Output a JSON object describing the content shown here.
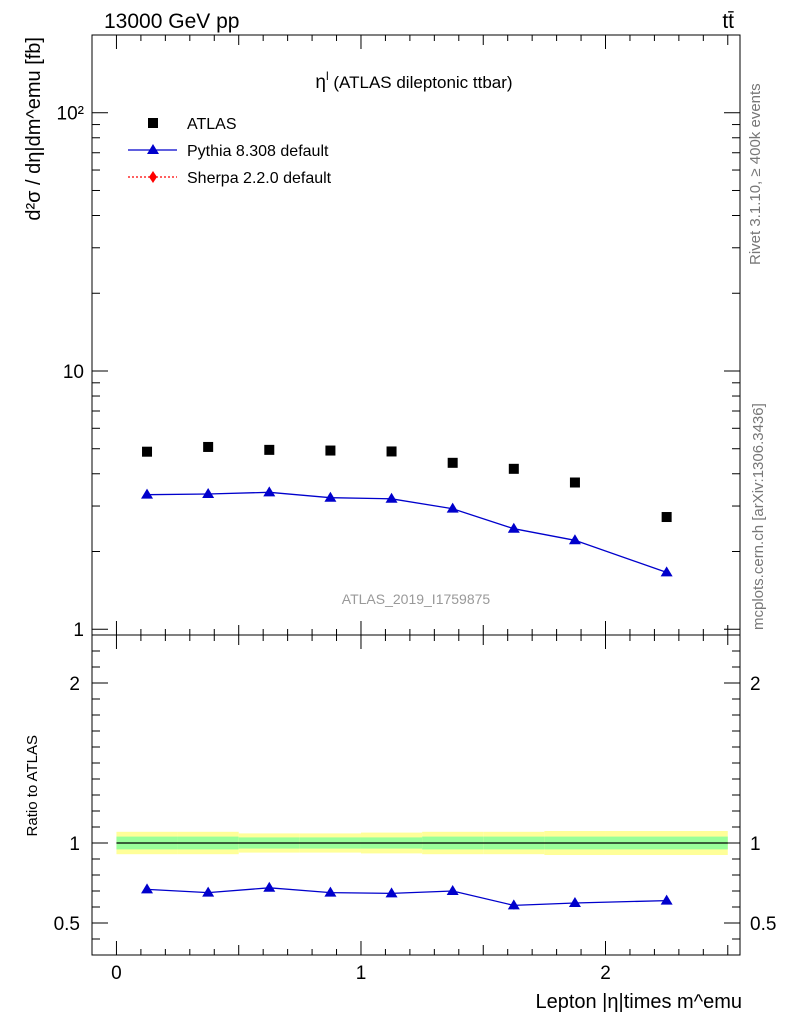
{
  "header": {
    "energy_label": "13000 GeV pp",
    "process_label": "tt̄"
  },
  "side_labels": {
    "rivet": "Rivet 3.1.10, ≥ 400k events",
    "mcplots": "mcplots.cern.ch [arXiv:1306.3436]"
  },
  "chart_data": [
    {
      "type": "scatter",
      "title": "η",
      "title_superscript": "l",
      "title_rest": " (ATLAS dileptonic ttbar)",
      "watermark": "ATLAS_2019_I1759875",
      "ylabel": "d²σ / dη|dm^emu [fb]",
      "yscale": "log",
      "ylim": [
        0.95,
        200
      ],
      "xlim": [
        -0.1,
        2.55
      ],
      "y_ticks": [
        {
          "value": 1,
          "label": "1"
        },
        {
          "value": 10,
          "label": "10"
        },
        {
          "value": 100,
          "label": "10²"
        }
      ],
      "legend_position": "top-left",
      "x": [
        0.125,
        0.375,
        0.625,
        0.875,
        1.125,
        1.375,
        1.625,
        1.875,
        2.25
      ],
      "series": [
        {
          "name": "ATLAS",
          "color": "#000000",
          "marker": "square",
          "values": [
            4.87,
            5.08,
            4.95,
            4.92,
            4.88,
            4.41,
            4.18,
            3.7,
            2.72
          ]
        },
        {
          "name": "Pythia 8.308 default",
          "color": "#0000cc",
          "marker": "triangle",
          "values": [
            3.32,
            3.34,
            3.39,
            3.23,
            3.2,
            2.93,
            2.45,
            2.21,
            1.66
          ]
        },
        {
          "name": "Sherpa 2.2.0 default",
          "color": "#ff0000",
          "marker": "diamond",
          "values": []
        }
      ]
    },
    {
      "type": "line",
      "ylabel": "Ratio to ATLAS",
      "xlabel": "Lepton |η|times m^emu",
      "ylim": [
        0.3,
        2.3
      ],
      "xlim": [
        -0.1,
        2.55
      ],
      "x_ticks": [
        {
          "value": 0,
          "label": "0"
        },
        {
          "value": 1,
          "label": "1"
        },
        {
          "value": 2,
          "label": "2"
        }
      ],
      "y_ticks": [
        {
          "value": 0.5,
          "label": "0.5"
        },
        {
          "value": 1,
          "label": "1"
        },
        {
          "value": 2,
          "label": "2"
        }
      ],
      "reference_line": 1,
      "bands": {
        "x_edges": [
          0,
          0.25,
          0.5,
          0.75,
          1.0,
          1.25,
          1.5,
          1.75,
          2.0,
          2.5
        ],
        "yellow_halfwidth": [
          0.07,
          0.07,
          0.06,
          0.06,
          0.065,
          0.07,
          0.07,
          0.075,
          0.075
        ],
        "green_halfwidth": [
          0.04,
          0.04,
          0.035,
          0.035,
          0.035,
          0.04,
          0.04,
          0.04,
          0.04
        ],
        "yellow_color": "#ffff99",
        "green_color": "#99ff99"
      },
      "x": [
        0.125,
        0.375,
        0.625,
        0.875,
        1.125,
        1.375,
        1.625,
        1.875,
        2.25
      ],
      "series": [
        {
          "name": "Pythia 8.308 default",
          "color": "#0000cc",
          "values": [
            0.71,
            0.69,
            0.72,
            0.69,
            0.685,
            0.7,
            0.61,
            0.625,
            0.64
          ],
          "errors": [
            0.02,
            0.02,
            0.02,
            0.02,
            0.02,
            0.02,
            0.025,
            0.025,
            0.02
          ]
        }
      ]
    }
  ]
}
